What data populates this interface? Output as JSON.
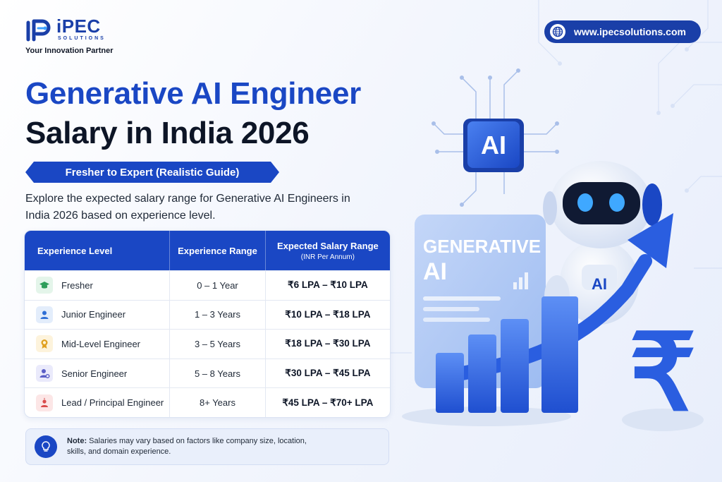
{
  "brand": {
    "name": "iPEC",
    "sub": "SOLUTIONS",
    "tagline": "Your Innovation Partner",
    "website": "www.ipecsolutions.com"
  },
  "title": {
    "line1": "Generative AI Engineer",
    "line2": "Salary in India 2026",
    "ribbon": "Fresher to Expert (Realistic Guide)",
    "intro": "Explore the expected salary range for Generative AI Engineers in India 2026 based on experience level."
  },
  "table": {
    "headers": {
      "level": "Experience Level",
      "range": "Experience Range",
      "salary": "Expected Salary Range",
      "salary_sub": "(INR Per Annum)"
    },
    "rows": [
      {
        "level": "Fresher",
        "range": "0 – 1 Year",
        "salary": "₹6 LPA – ₹10 LPA",
        "icon": "graduation-cap-icon",
        "color": "#2e9e5b",
        "bg": "#e4f5ea"
      },
      {
        "level": "Junior Engineer",
        "range": "1 – 3 Years",
        "salary": "₹10 LPA – ₹18 LPA",
        "icon": "user-icon",
        "color": "#2f6fd6",
        "bg": "#e3edfb"
      },
      {
        "level": "Mid-Level Engineer",
        "range": "3 – 5 Years",
        "salary": "₹18 LPA – ₹30 LPA",
        "icon": "medal-icon",
        "color": "#e0a020",
        "bg": "#fdf3dc"
      },
      {
        "level": "Senior Engineer",
        "range": "5 – 8 Years",
        "salary": "₹30 LPA – ₹45 LPA",
        "icon": "user-gear-icon",
        "color": "#5b5fc7",
        "bg": "#eaeafb"
      },
      {
        "level": "Lead / Principal Engineer",
        "range": "8+ Years",
        "salary": "₹45 LPA – ₹70+ LPA",
        "icon": "leader-icon",
        "color": "#d94b4b",
        "bg": "#fce6e6"
      }
    ]
  },
  "note": {
    "label": "Note:",
    "text": "Salaries may vary based on factors like company size, location, skills, and domain experience."
  },
  "illustration": {
    "chip_label": "AI",
    "screen_line1": "GENERATIVE",
    "screen_line2": "AI",
    "robot_badge": "AI",
    "currency_symbol": "₹"
  },
  "colors": {
    "primary": "#1a47c4",
    "dark": "#0d1526"
  }
}
